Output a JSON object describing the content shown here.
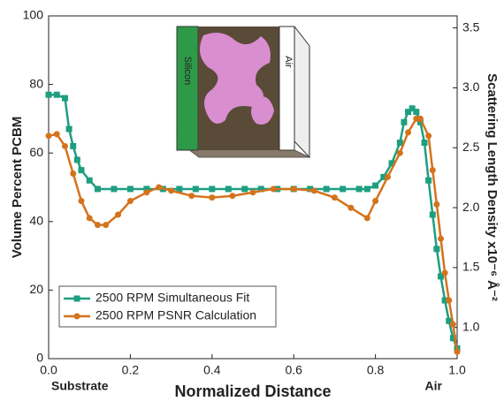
{
  "chart_data": {
    "type": "line",
    "y_label": "Volume Percent PCBM",
    "y2_label": "Scattering Length Density x10⁻⁶ Å⁻²",
    "x_label": "Normalized Distance",
    "annotations": [
      "Substrate",
      "Air"
    ],
    "inset_labels": [
      "Silicon",
      "Air"
    ],
    "xlim": [
      0,
      1
    ],
    "ylim": [
      0,
      100
    ],
    "y2lim": [
      0.74,
      3.6
    ],
    "xticks": [
      {
        "value": 0,
        "label": "0.0"
      },
      0.2,
      0.4,
      0.6,
      0.8,
      {
        "value": 1,
        "label": "1.0"
      }
    ],
    "yticks": [
      0,
      20,
      40,
      60,
      80,
      100
    ],
    "y2ticks": [
      {
        "value": 1,
        "label": "1.0"
      },
      1.5,
      {
        "value": 2,
        "label": "2.0"
      },
      2.5,
      {
        "value": 3,
        "label": "3.0"
      },
      3.5
    ],
    "series": [
      {
        "name": "2500 RPM Simultaneous Fit",
        "color": "#1e9e80",
        "marker": "square",
        "x": [
          0,
          0.02,
          0.04,
          0.05,
          0.06,
          0.07,
          0.08,
          0.1,
          0.12,
          0.16,
          0.2,
          0.24,
          0.28,
          0.32,
          0.36,
          0.4,
          0.44,
          0.48,
          0.52,
          0.56,
          0.6,
          0.64,
          0.68,
          0.72,
          0.76,
          0.78,
          0.8,
          0.82,
          0.84,
          0.86,
          0.87,
          0.88,
          0.89,
          0.9,
          0.91,
          0.92,
          0.93,
          0.94,
          0.95,
          0.96,
          0.97,
          0.98,
          0.99,
          1.0
        ],
        "values": [
          77,
          77,
          76,
          67,
          62,
          58,
          55,
          52,
          49.5,
          49.5,
          49.5,
          49.5,
          49.5,
          49.5,
          49.5,
          49.5,
          49.5,
          49.5,
          49.5,
          49.5,
          49.5,
          49.5,
          49.5,
          49.5,
          49.5,
          49.5,
          50.5,
          53,
          57,
          63,
          69,
          72,
          73,
          72,
          69,
          63,
          52,
          42,
          32,
          24,
          17,
          11,
          6,
          3
        ]
      },
      {
        "name": "2500 RPM PSNR Calculation",
        "color": "#d4731c",
        "marker": "circle",
        "x": [
          0,
          0.02,
          0.04,
          0.06,
          0.08,
          0.1,
          0.12,
          0.14,
          0.17,
          0.2,
          0.24,
          0.27,
          0.3,
          0.35,
          0.4,
          0.45,
          0.5,
          0.55,
          0.6,
          0.65,
          0.7,
          0.74,
          0.78,
          0.8,
          0.83,
          0.86,
          0.88,
          0.9,
          0.91,
          0.93,
          0.94,
          0.95,
          0.96,
          0.97,
          0.98,
          0.99,
          1.0
        ],
        "values": [
          65,
          65.5,
          62,
          54,
          46,
          41,
          39,
          39,
          42,
          46,
          48.5,
          50,
          49,
          47.5,
          47,
          47.5,
          48.5,
          49.5,
          49.5,
          49,
          47,
          44,
          41,
          46,
          53,
          60,
          66,
          70,
          70,
          65,
          55,
          45,
          35,
          25,
          17,
          10,
          2
        ]
      }
    ],
    "grid": false,
    "legend": "lower left"
  }
}
